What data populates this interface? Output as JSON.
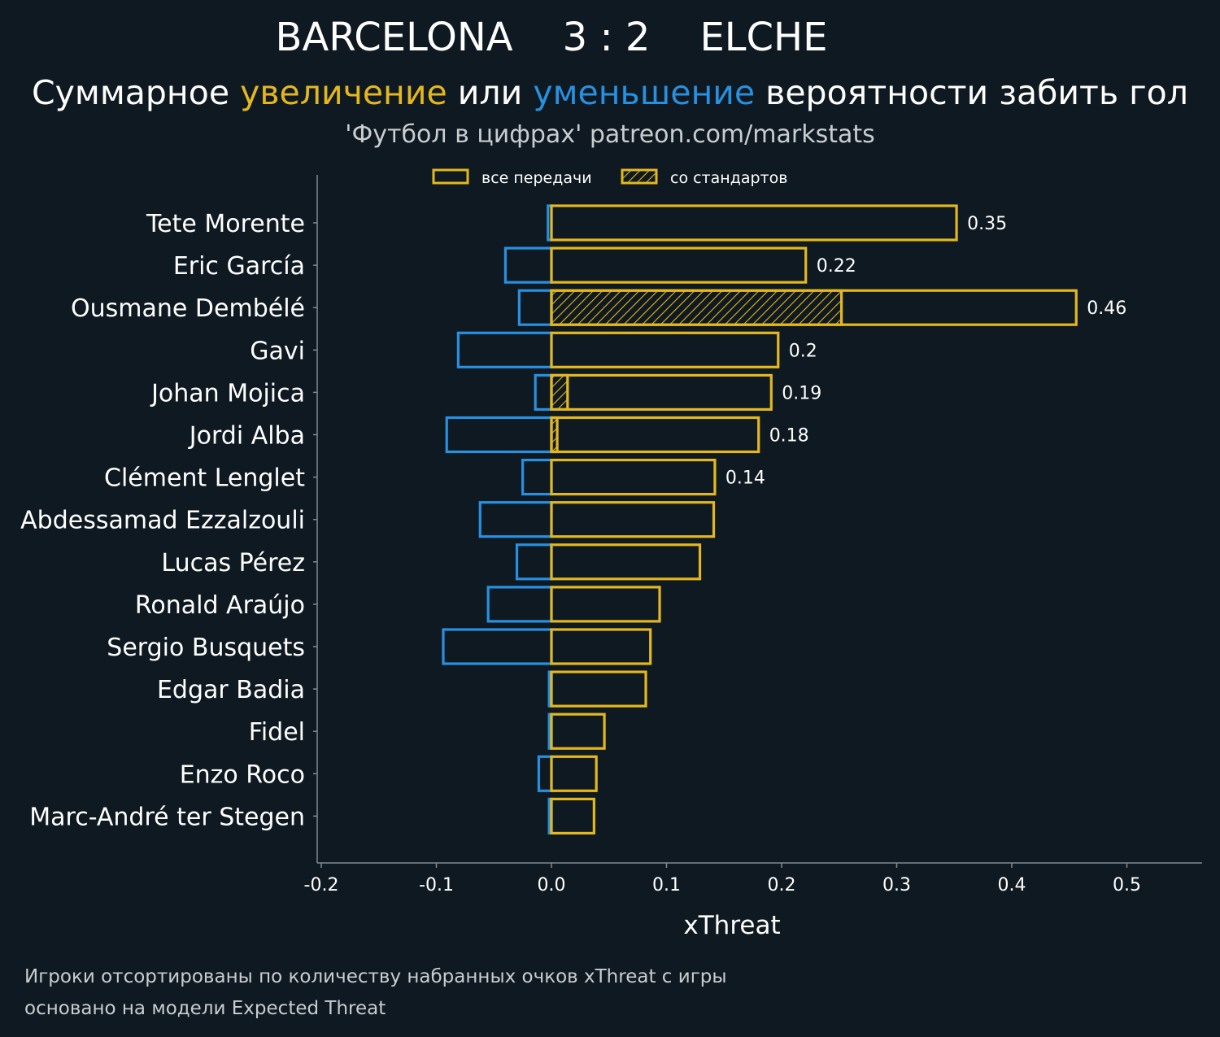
{
  "header": {
    "title": "BARCELONA    3 : 2    ELCHE",
    "subtitle_parts": [
      "Суммарное ",
      "увеличение",
      " или ",
      "уменьшение",
      " вероятности забить гол"
    ],
    "source": "'Футбол в цифрах' patreon.com/markstats"
  },
  "legend": {
    "all_passes": "все передачи",
    "set_pieces": "со стандартов"
  },
  "footnotes": {
    "line1": "Игроки отсортированы по количеству набранных очков xThreat с игры",
    "line2": "основано на модели Expected Threat"
  },
  "colors": {
    "background": "#0f1921",
    "positive": "#e3b81f",
    "negative": "#2790e0",
    "axis": "#7f8c95",
    "text": "#ffffff"
  },
  "chart_data": {
    "type": "bar",
    "orientation": "horizontal",
    "xlabel": "xThreat",
    "xlim": [
      -0.205,
      0.565
    ],
    "xticks": [
      -0.2,
      -0.1,
      0.0,
      0.1,
      0.2,
      0.3,
      0.4,
      0.5
    ],
    "xtick_labels": [
      "-0.2",
      "-0.1",
      "0.0",
      "0.1",
      "0.2",
      "0.3",
      "0.4",
      "0.5"
    ],
    "categories": [
      "Tete Morente",
      "Eric García",
      "Ousmane Dembélé",
      "Gavi",
      "Johan Mojica",
      "Jordi Alba",
      "Clément Lenglet",
      "Abdessamad Ezzalzouli",
      "Lucas Pérez",
      "Ronald Araújo",
      "Sergio Busquets",
      "Edgar Badia",
      "Fidel",
      "Enzo Roco",
      "Marc-André ter Stegen"
    ],
    "series": [
      {
        "name": "все передачи",
        "values": [
          0.352,
          0.221,
          0.456,
          0.197,
          0.191,
          0.18,
          0.142,
          0.141,
          0.129,
          0.094,
          0.086,
          0.082,
          0.046,
          0.039,
          0.037
        ]
      },
      {
        "name": "со стандартов",
        "values": [
          0.0,
          0.0,
          0.252,
          0.0,
          0.014,
          0.005,
          0.0,
          0.0,
          0.0,
          0.0,
          0.0,
          0.0,
          0.0,
          0.0,
          0.0
        ]
      },
      {
        "values": [
          -0.003,
          -0.04,
          -0.028,
          -0.081,
          -0.014,
          -0.091,
          -0.025,
          -0.062,
          -0.03,
          -0.055,
          -0.094,
          -0.002,
          -0.002,
          -0.011,
          -0.002
        ]
      }
    ],
    "value_labels": [
      "0.35",
      "0.22",
      "0.46",
      "0.2",
      "0.19",
      "0.18",
      "0.14",
      "",
      "",
      "",
      "",
      "",
      "",
      "",
      ""
    ]
  }
}
